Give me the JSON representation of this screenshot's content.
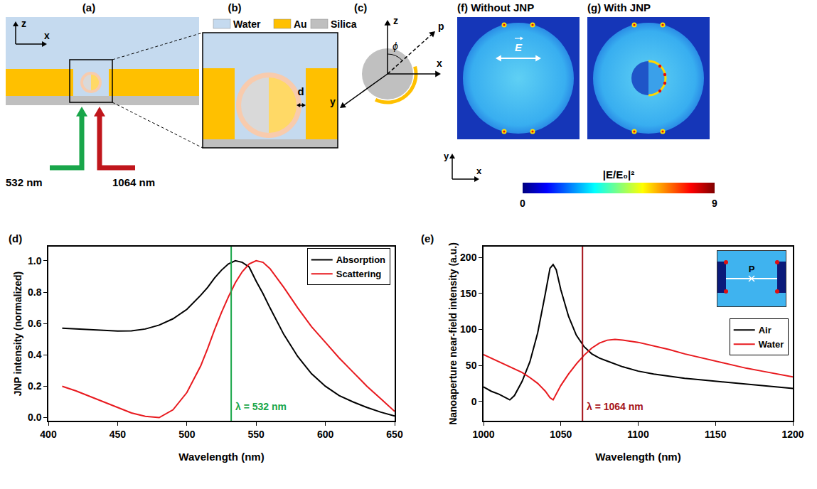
{
  "chart_data": [
    {
      "type": "line",
      "panel": "(d)",
      "x_label": "Wavelength (nm)",
      "y_label": "JNP intensity (normalized)",
      "x": [
        410,
        420,
        430,
        440,
        450,
        460,
        470,
        480,
        490,
        500,
        510,
        515,
        520,
        525,
        530,
        535,
        540,
        545,
        550,
        555,
        560,
        570,
        580,
        590,
        600,
        610,
        620,
        630,
        640,
        650
      ],
      "series": [
        {
          "name": "Absorption",
          "color": "#000000",
          "values": [
            0.57,
            0.565,
            0.56,
            0.555,
            0.552,
            0.553,
            0.565,
            0.59,
            0.63,
            0.69,
            0.78,
            0.83,
            0.89,
            0.94,
            0.98,
            1.0,
            0.99,
            0.96,
            0.87,
            0.79,
            0.7,
            0.53,
            0.39,
            0.28,
            0.2,
            0.14,
            0.1,
            0.065,
            0.035,
            0.01
          ]
        },
        {
          "name": "Scattering",
          "color": "#e8191e",
          "values": [
            0.2,
            0.17,
            0.135,
            0.1,
            0.065,
            0.03,
            0.008,
            0.0,
            0.05,
            0.16,
            0.33,
            0.44,
            0.56,
            0.67,
            0.77,
            0.86,
            0.93,
            0.98,
            1.0,
            0.99,
            0.95,
            0.83,
            0.7,
            0.58,
            0.48,
            0.38,
            0.29,
            0.2,
            0.12,
            0.04
          ]
        }
      ],
      "xlim": [
        400,
        650
      ],
      "xticks": [
        400,
        450,
        500,
        550,
        600,
        650
      ],
      "ylim": [
        -0.02,
        1.09
      ],
      "yticks": [
        {
          "value": 0,
          "label": "0.0"
        },
        0.2,
        0.4,
        0.6,
        0.8,
        {
          "value": 1,
          "label": "1.0"
        }
      ],
      "grid": false,
      "legend": "upper right",
      "vline": {
        "x": 532,
        "label": "λ = 532 nm",
        "color": "#19a64a"
      }
    },
    {
      "type": "line",
      "panel": "(e)",
      "x_label": "Wavelength (nm)",
      "y_label": "Nanoaperture near-field intensity (a.u.)",
      "x": [
        1000,
        1005,
        1010,
        1015,
        1017,
        1020,
        1025,
        1030,
        1035,
        1040,
        1043,
        1045,
        1047,
        1050,
        1055,
        1060,
        1065,
        1070,
        1075,
        1080,
        1085,
        1090,
        1100,
        1110,
        1120,
        1130,
        1140,
        1150,
        1160,
        1170,
        1180,
        1190,
        1200
      ],
      "series": [
        {
          "name": "Air",
          "color": "#000000",
          "values": [
            20,
            14,
            10,
            4,
            2,
            8,
            28,
            55,
            95,
            150,
            185,
            190,
            183,
            155,
            118,
            92,
            76,
            66,
            60,
            56,
            52,
            48,
            42,
            38,
            35,
            32,
            30,
            28,
            26,
            24,
            22,
            20,
            18
          ]
        },
        {
          "name": "Water",
          "color": "#e8191e",
          "values": [
            65,
            60,
            55,
            50,
            48,
            45,
            40,
            33,
            25,
            14,
            5,
            2,
            10,
            22,
            38,
            52,
            64,
            74,
            81,
            85,
            86,
            85,
            82,
            77,
            72,
            66,
            61,
            56,
            51,
            46,
            42,
            38,
            34
          ]
        }
      ],
      "xlim": [
        1000,
        1200
      ],
      "xticks": [
        1000,
        1050,
        1100,
        1150,
        1200
      ],
      "ylim": [
        -27,
        215
      ],
      "yticks": [
        0,
        50,
        100,
        150,
        200
      ],
      "grid": false,
      "legend": "right",
      "vline": {
        "x": 1064,
        "label": "λ = 1064 nm",
        "color": "#a5121a"
      },
      "inset_label": "P"
    }
  ],
  "diagram": {
    "panel_a": {
      "label": "(a)",
      "axes": [
        "z",
        "x"
      ],
      "beams": [
        "532 nm",
        "1064 nm"
      ]
    },
    "panel_b": {
      "label": "(b)",
      "materials": [
        {
          "name": "Water",
          "color": "#c5daef"
        },
        {
          "name": "Au",
          "color": "#ffc000"
        },
        {
          "name": "Silica",
          "color": "#bfbfbf"
        }
      ],
      "gap": "d"
    },
    "panel_c": {
      "label": "(c)",
      "axes": [
        "z",
        "x",
        "y"
      ],
      "direction": "p",
      "angle": "ϕ"
    },
    "panel_f": {
      "label": "(f) Without JNP",
      "field": "E",
      "axes": [
        "y",
        "x"
      ]
    },
    "panel_g": {
      "label": "(g) With JNP"
    },
    "colorbar": {
      "title": "|E/E₀|²",
      "range": [
        0,
        9
      ],
      "ticks": [
        0,
        9
      ]
    }
  }
}
